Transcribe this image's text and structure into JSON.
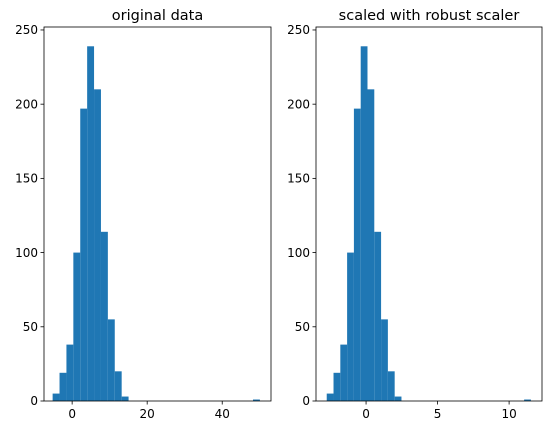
{
  "chart_data": [
    {
      "type": "histogram",
      "title": "original data",
      "xlim": [
        -7.5,
        53
      ],
      "ylim": [
        0,
        252
      ],
      "xticks": [
        0,
        20,
        40
      ],
      "yticks": [
        0,
        50,
        100,
        150,
        200,
        250
      ],
      "bin_width": 1.84,
      "bins": [
        {
          "x0": -5.2,
          "count": 5
        },
        {
          "x0": -3.36,
          "count": 19
        },
        {
          "x0": -1.52,
          "count": 38
        },
        {
          "x0": 0.32,
          "count": 100
        },
        {
          "x0": 2.16,
          "count": 197
        },
        {
          "x0": 4.0,
          "count": 239
        },
        {
          "x0": 5.84,
          "count": 210
        },
        {
          "x0": 7.68,
          "count": 114
        },
        {
          "x0": 9.52,
          "count": 55
        },
        {
          "x0": 11.36,
          "count": 20
        },
        {
          "x0": 13.2,
          "count": 3
        },
        {
          "x0": 48.2,
          "count": 1
        }
      ],
      "color": "#1f77b4",
      "grid": false
    },
    {
      "type": "histogram",
      "title": "scaled with robust scaler",
      "xlim": [
        -3.5,
        12.3
      ],
      "ylim": [
        0,
        252
      ],
      "xticks": [
        0,
        5,
        10
      ],
      "yticks": [
        0,
        50,
        100,
        150,
        200,
        250
      ],
      "bin_width": 0.475,
      "bins": [
        {
          "x0": -2.75,
          "count": 5
        },
        {
          "x0": -2.275,
          "count": 19
        },
        {
          "x0": -1.8,
          "count": 38
        },
        {
          "x0": -1.325,
          "count": 100
        },
        {
          "x0": -0.85,
          "count": 197
        },
        {
          "x0": -0.375,
          "count": 239
        },
        {
          "x0": 0.1,
          "count": 210
        },
        {
          "x0": 0.575,
          "count": 114
        },
        {
          "x0": 1.05,
          "count": 55
        },
        {
          "x0": 1.525,
          "count": 20
        },
        {
          "x0": 2.0,
          "count": 3
        },
        {
          "x0": 11.05,
          "count": 1
        }
      ],
      "color": "#1f77b4",
      "grid": false
    }
  ]
}
